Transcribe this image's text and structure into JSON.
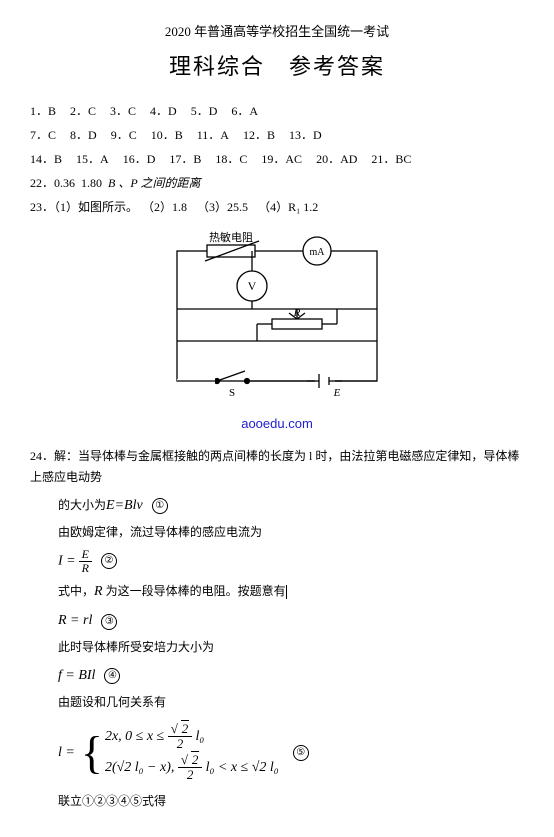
{
  "header": {
    "small": "2020 年普通高等学校招生全国统一考试",
    "large": "理科综合　参考答案"
  },
  "answers": [
    [
      {
        "n": "1",
        "a": "B"
      },
      {
        "n": "2",
        "a": "C"
      },
      {
        "n": "3",
        "a": "C"
      },
      {
        "n": "4",
        "a": "D"
      },
      {
        "n": "5",
        "a": "D"
      },
      {
        "n": "6",
        "a": "A"
      }
    ],
    [
      {
        "n": "7",
        "a": "C"
      },
      {
        "n": "8",
        "a": "D"
      },
      {
        "n": "9",
        "a": "C"
      },
      {
        "n": "10",
        "a": "B"
      },
      {
        "n": "11",
        "a": "A"
      },
      {
        "n": "12",
        "a": "B"
      },
      {
        "n": "13",
        "a": "D"
      }
    ],
    [
      {
        "n": "14",
        "a": "B"
      },
      {
        "n": "15",
        "a": "A"
      },
      {
        "n": "16",
        "a": "D"
      },
      {
        "n": "17",
        "a": "B"
      },
      {
        "n": "18",
        "a": "C"
      },
      {
        "n": "19",
        "a": "AC"
      },
      {
        "n": "20",
        "a": "AD"
      },
      {
        "n": "21",
        "a": "BC"
      }
    ]
  ],
  "q22": {
    "prefix": "22．",
    "v1": "0.36",
    "v2": "1.80",
    "tail": "B 、P 之间的距离"
  },
  "q23": {
    "prefix": "23．",
    "parts": [
      {
        "label": "（1）",
        "text": "如图所示。"
      },
      {
        "label": "（2）",
        "text": "1.8"
      },
      {
        "label": "（3）",
        "text": "25.5"
      },
      {
        "label": "（4）",
        "text": "R₁  1.2"
      }
    ]
  },
  "diagram": {
    "label_thermistor": "热敏电阻",
    "label_mA": "mA",
    "label_V": "V",
    "label_R": "R",
    "label_S": "S",
    "label_E": "E",
    "stroke": "#000000",
    "fill": "#ffffff",
    "text_color": "#000000",
    "font_size_pt": 10
  },
  "watermark": "aooedu.com",
  "q24": {
    "prefix": "24．解：",
    "line1": "当导体棒与金属框接触的两点间棒的长度为 l 时，由法拉第电磁感应定律知，导体棒上感应电动势",
    "line2_pre": "的大小为",
    "eq1": "E=Blv",
    "c1": "①",
    "line3": "由欧姆定律，流过导体棒的感应电流为",
    "eq2": {
      "lhs": "I =",
      "num": "E",
      "den": "R"
    },
    "c2": "②",
    "line4_pre": "式中，",
    "line4_mid": "R",
    "line4_post": " 为这一段导体棒的电阻。按题意有",
    "eq3": "R = rl",
    "c3": "③",
    "line5": "此时导体棒所受安培力大小为",
    "eq4": "f = BIl",
    "c4": "④",
    "line6": "由题设和几何关系有",
    "eq5": {
      "lhs": "l =",
      "case1_pre": "2x, 0 ≤ x ≤ ",
      "case1_tail": " l₀",
      "case2_pre": "2(√2 l₀ − x), ",
      "case2_mid": " l₀ < x ≤ √2 l₀",
      "sqrt_num": "2",
      "sqrt_den": "2"
    },
    "c5": "⑤",
    "line_last": "联立①②③④⑤式得"
  }
}
